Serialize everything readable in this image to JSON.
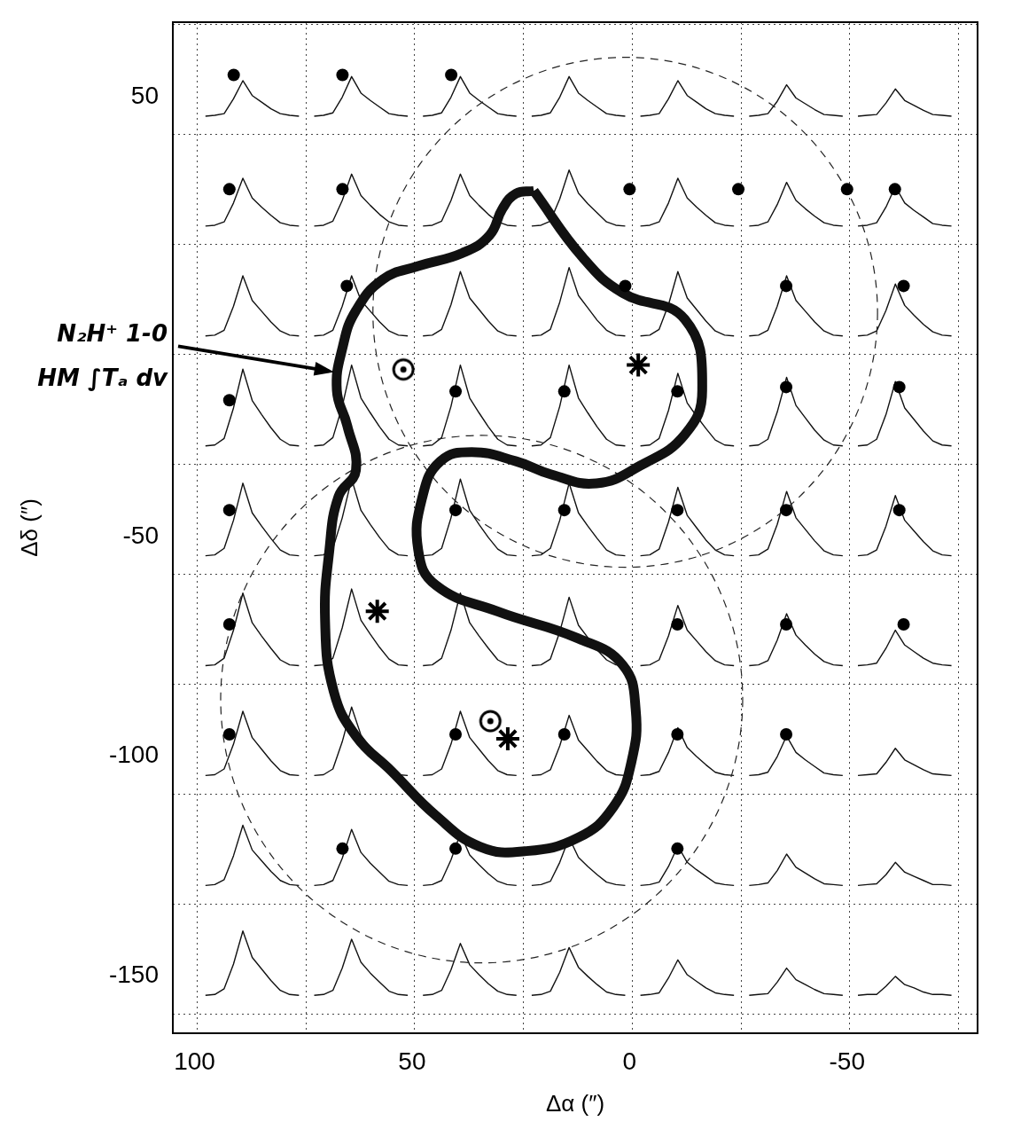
{
  "chart_data": {
    "type": "spectra_grid",
    "x_label": "Δα (″)",
    "y_label": "Δδ (″)",
    "xlim": [
      105,
      -80
    ],
    "xticks": [
      100,
      50,
      0,
      -50
    ],
    "ylim": [
      -163,
      67
    ],
    "yticks": [
      50,
      -50,
      -100,
      -150
    ],
    "grid": true,
    "spectra": {
      "ra": [
        87,
        62,
        37,
        12,
        -13,
        -38,
        -63
      ],
      "dec": [
        54,
        29,
        4,
        -21,
        -46,
        -71,
        -96,
        -121,
        -146
      ],
      "profiles": [
        [
          [
            0.02,
            0.03,
            0.05,
            0.23,
            0.45,
            0.27,
            0.19,
            0.11,
            0.05,
            0.03,
            0.02
          ],
          [
            0.02,
            0.03,
            0.06,
            0.25,
            0.5,
            0.3,
            0.21,
            0.13,
            0.05,
            0.03,
            0.02
          ],
          [
            0.02,
            0.03,
            0.06,
            0.25,
            0.5,
            0.3,
            0.21,
            0.13,
            0.05,
            0.03,
            0.02
          ],
          [
            0.02,
            0.03,
            0.06,
            0.25,
            0.5,
            0.3,
            0.21,
            0.13,
            0.05,
            0.03,
            0.02
          ],
          [
            0.02,
            0.03,
            0.05,
            0.23,
            0.45,
            0.27,
            0.19,
            0.11,
            0.05,
            0.03,
            0.02
          ],
          [
            0.02,
            0.03,
            0.05,
            0.2,
            0.4,
            0.24,
            0.17,
            0.1,
            0.04,
            0.03,
            0.02
          ],
          [
            0.02,
            0.03,
            0.04,
            0.18,
            0.35,
            0.21,
            0.15,
            0.09,
            0.04,
            0.03,
            0.02
          ]
        ],
        [
          [
            0.02,
            0.03,
            0.07,
            0.3,
            0.6,
            0.36,
            0.25,
            0.15,
            0.06,
            0.03,
            0.02
          ],
          [
            0.02,
            0.03,
            0.08,
            0.33,
            0.65,
            0.39,
            0.27,
            0.16,
            0.07,
            0.03,
            0.02
          ],
          [
            0.02,
            0.03,
            0.08,
            0.33,
            0.65,
            0.39,
            0.27,
            0.16,
            0.07,
            0.03,
            0.02
          ],
          [
            0.02,
            0.03,
            0.08,
            0.35,
            0.7,
            0.42,
            0.29,
            0.18,
            0.07,
            0.03,
            0.02
          ],
          [
            0.02,
            0.03,
            0.07,
            0.3,
            0.6,
            0.36,
            0.25,
            0.15,
            0.06,
            0.03,
            0.02
          ],
          [
            0.02,
            0.03,
            0.07,
            0.28,
            0.55,
            0.33,
            0.23,
            0.14,
            0.06,
            0.03,
            0.02
          ],
          [
            0.02,
            0.03,
            0.06,
            0.25,
            0.5,
            0.3,
            0.21,
            0.13,
            0.05,
            0.03,
            0.02
          ]
        ],
        [
          [
            0.02,
            0.03,
            0.09,
            0.38,
            0.75,
            0.45,
            0.32,
            0.19,
            0.08,
            0.03,
            0.02
          ],
          [
            0.02,
            0.03,
            0.09,
            0.38,
            0.75,
            0.45,
            0.32,
            0.19,
            0.08,
            0.03,
            0.02
          ],
          [
            0.02,
            0.03,
            0.1,
            0.4,
            0.8,
            0.48,
            0.34,
            0.2,
            0.08,
            0.03,
            0.02
          ],
          [
            0.02,
            0.03,
            0.1,
            0.43,
            0.85,
            0.51,
            0.36,
            0.21,
            0.09,
            0.03,
            0.02
          ],
          [
            0.02,
            0.03,
            0.1,
            0.4,
            0.8,
            0.48,
            0.34,
            0.2,
            0.08,
            0.03,
            0.02
          ],
          [
            0.02,
            0.03,
            0.09,
            0.38,
            0.75,
            0.45,
            0.32,
            0.19,
            0.08,
            0.03,
            0.02
          ],
          [
            0.02,
            0.03,
            0.08,
            0.33,
            0.65,
            0.39,
            0.27,
            0.16,
            0.07,
            0.03,
            0.02
          ]
        ],
        [
          [
            0.02,
            0.03,
            0.11,
            0.48,
            0.95,
            0.57,
            0.4,
            0.24,
            0.1,
            0.03,
            0.02
          ],
          [
            0.02,
            0.03,
            0.12,
            0.5,
            1.0,
            0.6,
            0.42,
            0.25,
            0.1,
            0.03,
            0.02
          ],
          [
            0.02,
            0.03,
            0.12,
            0.5,
            1.0,
            0.6,
            0.42,
            0.25,
            0.1,
            0.03,
            0.02
          ],
          [
            0.02,
            0.03,
            0.12,
            0.5,
            1.0,
            0.6,
            0.42,
            0.25,
            0.1,
            0.03,
            0.02
          ],
          [
            0.02,
            0.03,
            0.11,
            0.45,
            0.9,
            0.54,
            0.38,
            0.23,
            0.09,
            0.03,
            0.02
          ],
          [
            0.02,
            0.03,
            0.1,
            0.43,
            0.85,
            0.51,
            0.36,
            0.21,
            0.09,
            0.03,
            0.02
          ],
          [
            0.02,
            0.03,
            0.1,
            0.4,
            0.8,
            0.48,
            0.34,
            0.2,
            0.08,
            0.03,
            0.02
          ]
        ],
        [
          [
            0.02,
            0.03,
            0.11,
            0.45,
            0.9,
            0.54,
            0.38,
            0.23,
            0.09,
            0.03,
            0.02
          ],
          [
            0.02,
            0.03,
            0.11,
            0.48,
            0.95,
            0.57,
            0.4,
            0.24,
            0.1,
            0.03,
            0.02
          ],
          [
            0.02,
            0.03,
            0.11,
            0.48,
            0.95,
            0.57,
            0.4,
            0.24,
            0.1,
            0.03,
            0.02
          ],
          [
            0.02,
            0.03,
            0.11,
            0.45,
            0.9,
            0.54,
            0.38,
            0.23,
            0.09,
            0.03,
            0.02
          ],
          [
            0.02,
            0.03,
            0.1,
            0.43,
            0.85,
            0.51,
            0.36,
            0.21,
            0.09,
            0.03,
            0.02
          ],
          [
            0.02,
            0.03,
            0.1,
            0.4,
            0.8,
            0.48,
            0.34,
            0.2,
            0.08,
            0.03,
            0.02
          ],
          [
            0.02,
            0.03,
            0.09,
            0.38,
            0.75,
            0.45,
            0.32,
            0.19,
            0.08,
            0.03,
            0.02
          ]
        ],
        [
          [
            0.02,
            0.03,
            0.11,
            0.45,
            0.9,
            0.54,
            0.38,
            0.23,
            0.09,
            0.03,
            0.02
          ],
          [
            0.02,
            0.03,
            0.11,
            0.48,
            0.95,
            0.57,
            0.4,
            0.24,
            0.1,
            0.03,
            0.02
          ],
          [
            0.02,
            0.03,
            0.11,
            0.45,
            0.9,
            0.54,
            0.38,
            0.23,
            0.09,
            0.03,
            0.02
          ],
          [
            0.02,
            0.03,
            0.1,
            0.43,
            0.85,
            0.51,
            0.36,
            0.21,
            0.09,
            0.03,
            0.02
          ],
          [
            0.02,
            0.03,
            0.09,
            0.38,
            0.75,
            0.45,
            0.32,
            0.19,
            0.08,
            0.03,
            0.02
          ],
          [
            0.02,
            0.03,
            0.08,
            0.33,
            0.65,
            0.39,
            0.27,
            0.16,
            0.07,
            0.03,
            0.02
          ],
          [
            0.02,
            0.03,
            0.05,
            0.23,
            0.45,
            0.27,
            0.19,
            0.11,
            0.05,
            0.03,
            0.02
          ]
        ],
        [
          [
            0.02,
            0.03,
            0.1,
            0.4,
            0.8,
            0.48,
            0.34,
            0.2,
            0.08,
            0.03,
            0.02
          ],
          [
            0.02,
            0.03,
            0.1,
            0.43,
            0.85,
            0.51,
            0.36,
            0.21,
            0.09,
            0.03,
            0.02
          ],
          [
            0.02,
            0.03,
            0.1,
            0.4,
            0.8,
            0.48,
            0.34,
            0.2,
            0.08,
            0.03,
            0.02
          ],
          [
            0.02,
            0.03,
            0.09,
            0.38,
            0.75,
            0.45,
            0.32,
            0.19,
            0.08,
            0.03,
            0.02
          ],
          [
            0.02,
            0.03,
            0.07,
            0.3,
            0.6,
            0.36,
            0.25,
            0.15,
            0.06,
            0.03,
            0.02
          ],
          [
            0.02,
            0.03,
            0.06,
            0.25,
            0.5,
            0.3,
            0.21,
            0.13,
            0.05,
            0.03,
            0.02
          ],
          [
            0.02,
            0.03,
            0.04,
            0.18,
            0.35,
            0.21,
            0.15,
            0.09,
            0.04,
            0.03,
            0.02
          ]
        ],
        [
          [
            0.02,
            0.03,
            0.09,
            0.38,
            0.75,
            0.45,
            0.32,
            0.19,
            0.08,
            0.03,
            0.02
          ],
          [
            0.02,
            0.03,
            0.08,
            0.35,
            0.7,
            0.42,
            0.29,
            0.18,
            0.07,
            0.03,
            0.02
          ],
          [
            0.02,
            0.03,
            0.08,
            0.33,
            0.65,
            0.39,
            0.27,
            0.16,
            0.07,
            0.03,
            0.02
          ],
          [
            0.02,
            0.03,
            0.07,
            0.3,
            0.6,
            0.36,
            0.25,
            0.15,
            0.06,
            0.03,
            0.02
          ],
          [
            0.02,
            0.03,
            0.06,
            0.25,
            0.5,
            0.3,
            0.21,
            0.13,
            0.05,
            0.03,
            0.02
          ],
          [
            0.02,
            0.03,
            0.05,
            0.2,
            0.4,
            0.24,
            0.17,
            0.1,
            0.04,
            0.03,
            0.02
          ],
          [
            0.02,
            0.03,
            0.04,
            0.15,
            0.3,
            0.18,
            0.13,
            0.08,
            0.03,
            0.03,
            0.02
          ]
        ],
        [
          [
            0.02,
            0.03,
            0.1,
            0.4,
            0.8,
            0.48,
            0.34,
            0.2,
            0.08,
            0.03,
            0.02
          ],
          [
            0.02,
            0.03,
            0.08,
            0.35,
            0.7,
            0.42,
            0.29,
            0.18,
            0.07,
            0.03,
            0.02
          ],
          [
            0.02,
            0.03,
            0.08,
            0.33,
            0.65,
            0.39,
            0.27,
            0.16,
            0.07,
            0.03,
            0.02
          ],
          [
            0.02,
            0.03,
            0.07,
            0.3,
            0.6,
            0.36,
            0.25,
            0.15,
            0.06,
            0.03,
            0.02
          ],
          [
            0.02,
            0.03,
            0.05,
            0.23,
            0.45,
            0.27,
            0.19,
            0.11,
            0.05,
            0.03,
            0.02
          ],
          [
            0.02,
            0.03,
            0.04,
            0.18,
            0.35,
            0.21,
            0.15,
            0.09,
            0.04,
            0.03,
            0.02
          ],
          [
            0.02,
            0.03,
            0.03,
            0.13,
            0.25,
            0.15,
            0.11,
            0.06,
            0.03,
            0.03,
            0.02
          ]
        ]
      ]
    },
    "points": {
      "marker": "circle",
      "color": "#000000",
      "x": [
        91,
        66,
        41,
        92,
        66,
        0,
        -25,
        -50,
        -61,
        65,
        1,
        -36,
        -63,
        92,
        40,
        15,
        -11,
        -36,
        -62,
        92,
        40,
        15,
        -11,
        -36,
        -62,
        92,
        -11,
        -36,
        -63,
        92,
        40,
        15,
        -11,
        -36,
        66,
        40,
        -11
      ],
      "y": [
        55,
        55,
        55,
        29,
        29,
        29,
        29,
        29,
        29,
        7,
        7,
        7,
        7,
        -19,
        -17,
        -17,
        -17,
        -16,
        -16,
        -44,
        -44,
        -44,
        -44,
        -44,
        -44,
        -70,
        -70,
        -70,
        -70,
        -95,
        -95,
        -95,
        -95,
        -95,
        -121,
        -121,
        -121
      ]
    },
    "symbols": [
      {
        "marker": "circled_dot",
        "color": "#000000",
        "x": [
          52,
          32
        ],
        "y": [
          -12,
          -92
        ]
      },
      {
        "marker": "star",
        "color": "#000000",
        "x": [
          -2,
          58,
          28
        ],
        "y": [
          -11,
          -67,
          -96
        ]
      }
    ],
    "contour": {
      "label": [
        "N₂H⁺ 1-0",
        "HM ∫Tₐ dv"
      ],
      "color": "#111111",
      "x": [
        22.0,
        10.8,
        1.6,
        -12.7,
        -16.7,
        -12.7,
        -2.4,
        7.6,
        18.0,
        26.1,
        36.3,
        43.5,
        47.6,
        48.6,
        44.5,
        30.2,
        11.8,
        1.6,
        -1.4,
        -0.4,
        3.7,
        11.8,
        24.1,
        34.3,
        44.5,
        54.7,
        62.9,
        68.0,
        70.0,
        69.0,
        66.9,
        62.9,
        64.9,
        67.3,
        65.9,
        62.9,
        56.7,
        48.6,
        38.4,
        32.2,
        29.2,
        26.1
      ],
      "y": [
        28.6,
        13.5,
        5.4,
        -0.6,
        -16.7,
        -26.8,
        -33.9,
        -37.9,
        -35.9,
        -32.9,
        -30.8,
        -32.9,
        -40.9,
        -53.0,
        -61.1,
        -67.1,
        -73.2,
        -79.2,
        -89.3,
        -101.4,
        -111.5,
        -118.5,
        -121.6,
        -120.6,
        -113.5,
        -103.4,
        -95.4,
        -85.3,
        -69.2,
        -53.0,
        -40.9,
        -34.9,
        -24.8,
        -16.7,
        -6.7,
        1.4,
        8.5,
        11.5,
        14.5,
        18.5,
        24.6,
        28.0
      ]
    },
    "circles": [
      {
        "center": [
          1,
          1
        ],
        "radius": 58,
        "line_style": "dashed"
      },
      {
        "center": [
          34,
          -87
        ],
        "radius": 60,
        "line_style": "dashed"
      }
    ]
  }
}
